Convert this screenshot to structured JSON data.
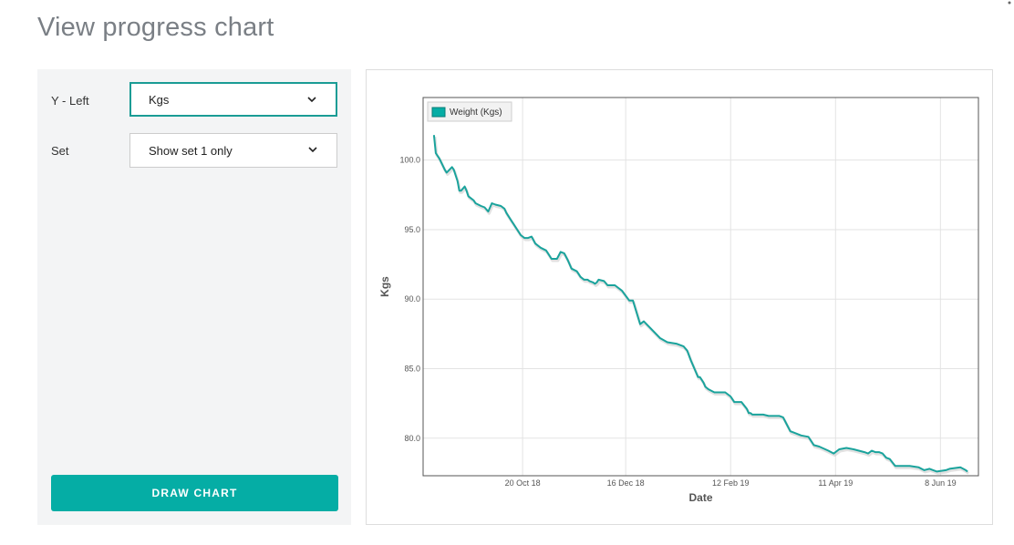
{
  "page": {
    "title": "View progress chart"
  },
  "controls": {
    "y_left": {
      "label": "Y - Left",
      "value": "Kgs"
    },
    "set": {
      "label": "Set",
      "value": "Show set 1 only"
    },
    "draw_button": "DRAW CHART"
  },
  "colors": {
    "accent": "#05ada5",
    "line": "#1aa39c"
  },
  "chart_data": {
    "type": "line",
    "xlabel": "Date",
    "ylabel": "Kgs",
    "ylim": [
      77.3,
      104.5
    ],
    "yticks": [
      80.0,
      85.0,
      90.0,
      95.0,
      100.0
    ],
    "ytick_labels": [
      "80.0",
      "85.0",
      "90.0",
      "95.0",
      "100.0"
    ],
    "xlim": [
      "2018-08-26",
      "2019-06-29"
    ],
    "xticks": [
      "2018-10-20",
      "2018-12-16",
      "2019-02-12",
      "2019-04-11",
      "2019-06-08"
    ],
    "xtick_labels": [
      "20 Oct 18",
      "16 Dec 18",
      "12 Feb 19",
      "11 Apr 19",
      "8 Jun 19"
    ],
    "grid": true,
    "legend_position": "top-left",
    "series": [
      {
        "name": "Weight (Kgs)",
        "x": [
          "2018-09-01",
          "2018-09-02",
          "2018-09-04",
          "2018-09-07",
          "2018-09-08",
          "2018-09-11",
          "2018-09-12",
          "2018-09-14",
          "2018-09-15",
          "2018-09-16",
          "2018-09-18",
          "2018-09-19",
          "2018-09-20",
          "2018-09-22",
          "2018-09-23",
          "2018-09-24",
          "2018-09-27",
          "2018-09-29",
          "2018-10-01",
          "2018-10-03",
          "2018-10-05",
          "2018-10-08",
          "2018-10-10",
          "2018-10-11",
          "2018-10-13",
          "2018-10-14",
          "2018-10-15",
          "2018-10-16",
          "2018-10-19",
          "2018-10-21",
          "2018-10-23",
          "2018-10-25",
          "2018-10-27",
          "2018-10-30",
          "2018-11-02",
          "2018-11-05",
          "2018-11-08",
          "2018-11-10",
          "2018-11-12",
          "2018-11-14",
          "2018-11-16",
          "2018-11-19",
          "2018-11-21",
          "2018-11-23",
          "2018-11-25",
          "2018-11-26",
          "2018-11-28",
          "2018-11-29",
          "2018-11-30",
          "2018-12-01",
          "2018-12-04",
          "2018-12-06",
          "2018-12-08",
          "2018-12-10",
          "2018-12-14",
          "2018-12-18",
          "2018-12-20",
          "2018-12-24",
          "2018-12-26",
          "2019-01-04",
          "2019-01-08",
          "2019-01-13",
          "2019-01-17",
          "2019-01-19",
          "2019-01-21",
          "2019-01-25",
          "2019-01-26",
          "2019-01-27",
          "2019-01-28",
          "2019-01-29",
          "2019-01-30",
          "2019-01-31",
          "2019-02-03",
          "2019-02-07",
          "2019-02-09",
          "2019-02-12",
          "2019-02-14",
          "2019-02-16",
          "2019-02-18",
          "2019-02-21",
          "2019-02-22",
          "2019-02-23",
          "2019-02-24",
          "2019-02-27",
          "2019-03-02",
          "2019-03-05",
          "2019-03-07",
          "2019-03-09",
          "2019-03-11",
          "2019-03-13",
          "2019-03-15",
          "2019-03-17",
          "2019-03-19",
          "2019-03-23",
          "2019-03-27",
          "2019-03-30",
          "2019-04-02",
          "2019-04-07",
          "2019-04-10",
          "2019-04-13",
          "2019-04-17",
          "2019-04-21",
          "2019-04-27",
          "2019-04-29",
          "2019-05-01",
          "2019-05-03",
          "2019-05-05",
          "2019-05-07",
          "2019-05-09",
          "2019-05-11",
          "2019-05-14",
          "2019-05-15",
          "2019-05-17",
          "2019-05-22",
          "2019-05-27",
          "2019-05-30",
          "2019-06-02",
          "2019-06-06",
          "2019-06-11",
          "2019-06-13",
          "2019-06-19",
          "2019-06-22",
          "2019-06-23"
        ],
        "y": [
          101.8,
          100.5,
          100.1,
          99.3,
          99.1,
          99.5,
          99.3,
          98.5,
          97.8,
          97.8,
          98.1,
          97.8,
          97.4,
          97.2,
          97.1,
          96.9,
          96.7,
          96.6,
          96.3,
          96.9,
          96.8,
          96.7,
          96.5,
          96.2,
          95.8,
          95.6,
          95.4,
          95.2,
          94.6,
          94.4,
          94.4,
          94.5,
          94.0,
          93.7,
          93.5,
          92.9,
          92.9,
          93.4,
          93.3,
          92.8,
          92.2,
          92.0,
          91.6,
          91.4,
          91.4,
          91.3,
          91.2,
          91.1,
          91.2,
          91.4,
          91.3,
          91.0,
          91.0,
          91.0,
          90.6,
          89.9,
          89.9,
          88.2,
          88.4,
          87.2,
          86.9,
          86.8,
          86.6,
          86.3,
          85.6,
          84.4,
          84.4,
          84.2,
          84.0,
          83.7,
          83.6,
          83.5,
          83.3,
          83.3,
          83.3,
          83.0,
          82.6,
          82.6,
          82.6,
          82.1,
          81.8,
          81.8,
          81.7,
          81.7,
          81.7,
          81.6,
          81.6,
          81.6,
          81.6,
          81.5,
          81.0,
          80.5,
          80.4,
          80.2,
          80.1,
          79.5,
          79.4,
          79.1,
          78.9,
          79.2,
          79.3,
          79.2,
          79.0,
          78.9,
          79.1,
          79.0,
          79.0,
          78.9,
          78.6,
          78.5,
          78.0,
          78.0,
          78.0,
          78.0,
          77.9,
          77.7,
          77.8,
          77.6,
          77.7,
          77.8,
          77.9,
          77.7,
          77.6
        ]
      }
    ]
  }
}
